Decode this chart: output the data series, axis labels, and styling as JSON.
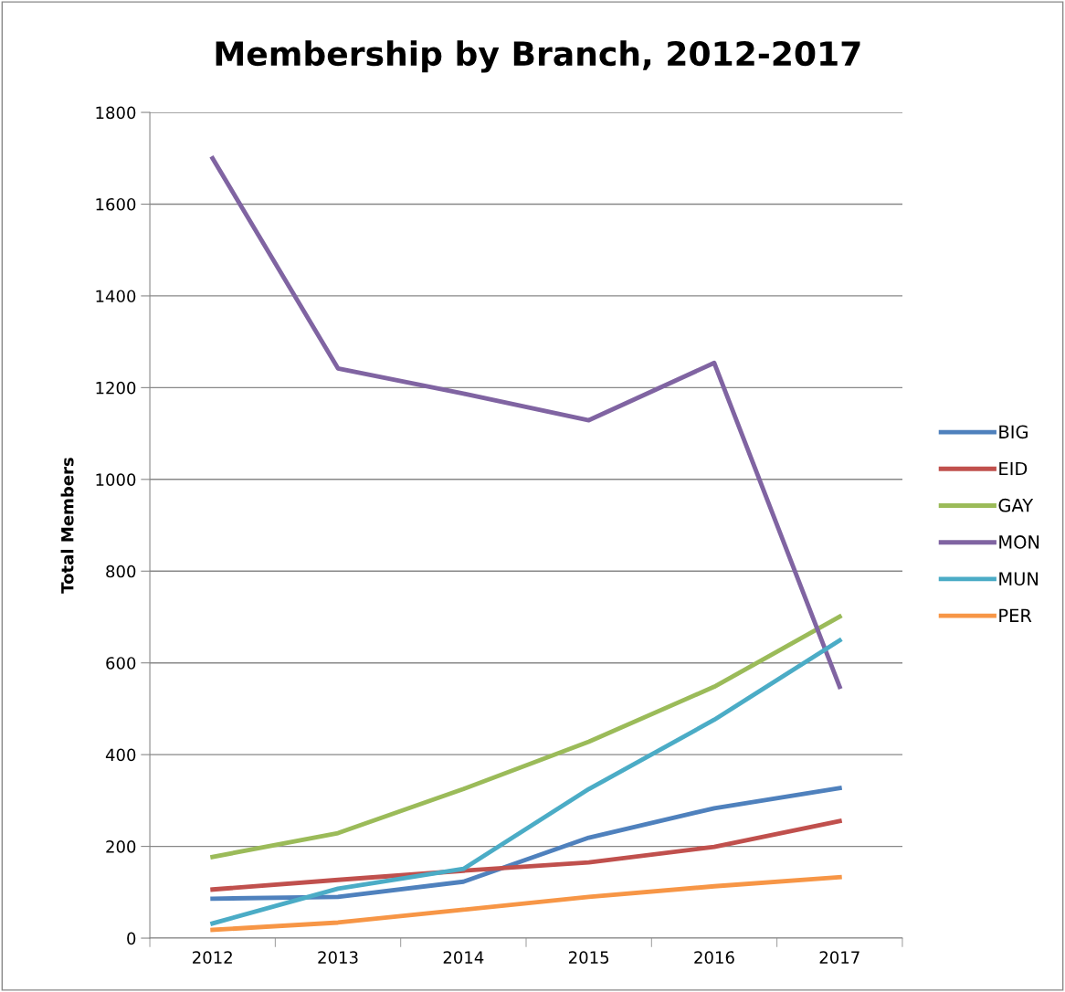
{
  "chart_data": {
    "type": "line",
    "title": "Membership by Branch, 2012-2017",
    "ylabel": "Total Members",
    "categories": [
      "2012",
      "2013",
      "2014",
      "2015",
      "2016",
      "2017"
    ],
    "series": [
      {
        "name": "BIG",
        "color": "#4f81bd",
        "values": [
          86,
          90,
          123,
          219,
          283,
          327
        ]
      },
      {
        "name": "EID",
        "color": "#c0504d",
        "values": [
          106,
          127,
          147,
          165,
          199,
          255
        ]
      },
      {
        "name": "GAY",
        "color": "#9bbb59",
        "values": [
          177,
          229,
          325,
          428,
          548,
          701
        ]
      },
      {
        "name": "MON",
        "color": "#8064a2",
        "values": [
          1700,
          1242,
          1187,
          1129,
          1254,
          548
        ]
      },
      {
        "name": "MUN",
        "color": "#4bacc6",
        "values": [
          32,
          108,
          151,
          325,
          476,
          649
        ]
      },
      {
        "name": "PER",
        "color": "#f79646",
        "values": [
          18,
          34,
          62,
          90,
          113,
          133
        ]
      }
    ],
    "ylim": [
      0,
      1800
    ],
    "yticks": [
      0,
      200,
      400,
      600,
      800,
      1000,
      1200,
      1400,
      1600,
      1800
    ],
    "grid": "y",
    "legend": "right",
    "marker": "none",
    "line_style": "solid"
  }
}
